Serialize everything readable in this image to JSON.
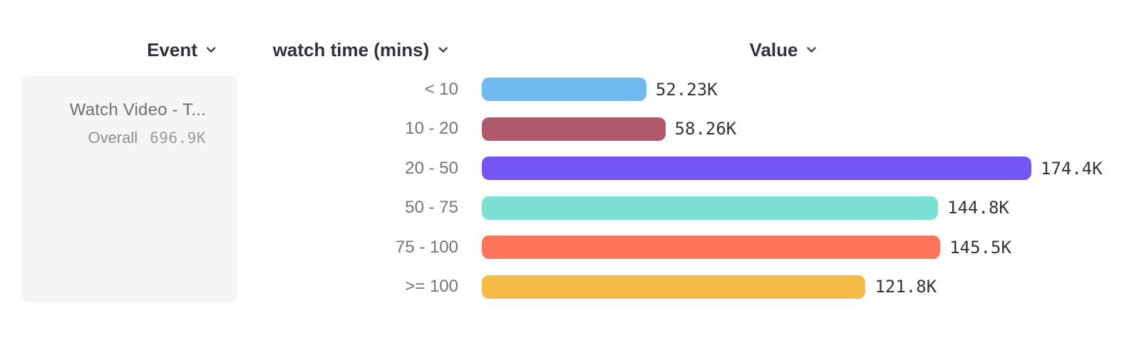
{
  "header": {
    "columns": [
      {
        "label": "Event"
      },
      {
        "label": "watch time (mins)"
      },
      {
        "label": "Value"
      }
    ]
  },
  "event_card": {
    "title": "Watch Video - T...",
    "subtitle_label": "Overall",
    "subtitle_value": "696.9K"
  },
  "chart_data": {
    "type": "bar",
    "orientation": "horizontal",
    "breakdown_property": "watch time (mins)",
    "event": "Watch Video - T...",
    "overall_total_label": "696.9K",
    "categories": [
      "< 10",
      "10 - 20",
      "20 - 50",
      "50 - 75",
      "75 - 100",
      ">= 100"
    ],
    "values_in_thousands": [
      52.23,
      58.26,
      174.4,
      144.8,
      145.5,
      121.8
    ],
    "value_labels": [
      "52.23K",
      "58.26K",
      "174.4K",
      "144.8K",
      "145.5K",
      "121.8K"
    ],
    "bar_colors": [
      "#70baf2",
      "#b0596c",
      "#7456f7",
      "#7ce0d2",
      "#fc7459",
      "#f6ba45"
    ],
    "xlim_in_thousands": [
      0,
      174.4
    ],
    "grid": "off",
    "legend": "none"
  },
  "colors": {
    "header_text": "#32323b",
    "row_label_text": "#73737b",
    "value_text": "#34343b",
    "card_background": "#f5f5f6",
    "card_title_text": "#6f6f78",
    "card_subtitle_text": "#8d8d94",
    "card_subtitle_value_text": "#9a9aa1"
  }
}
